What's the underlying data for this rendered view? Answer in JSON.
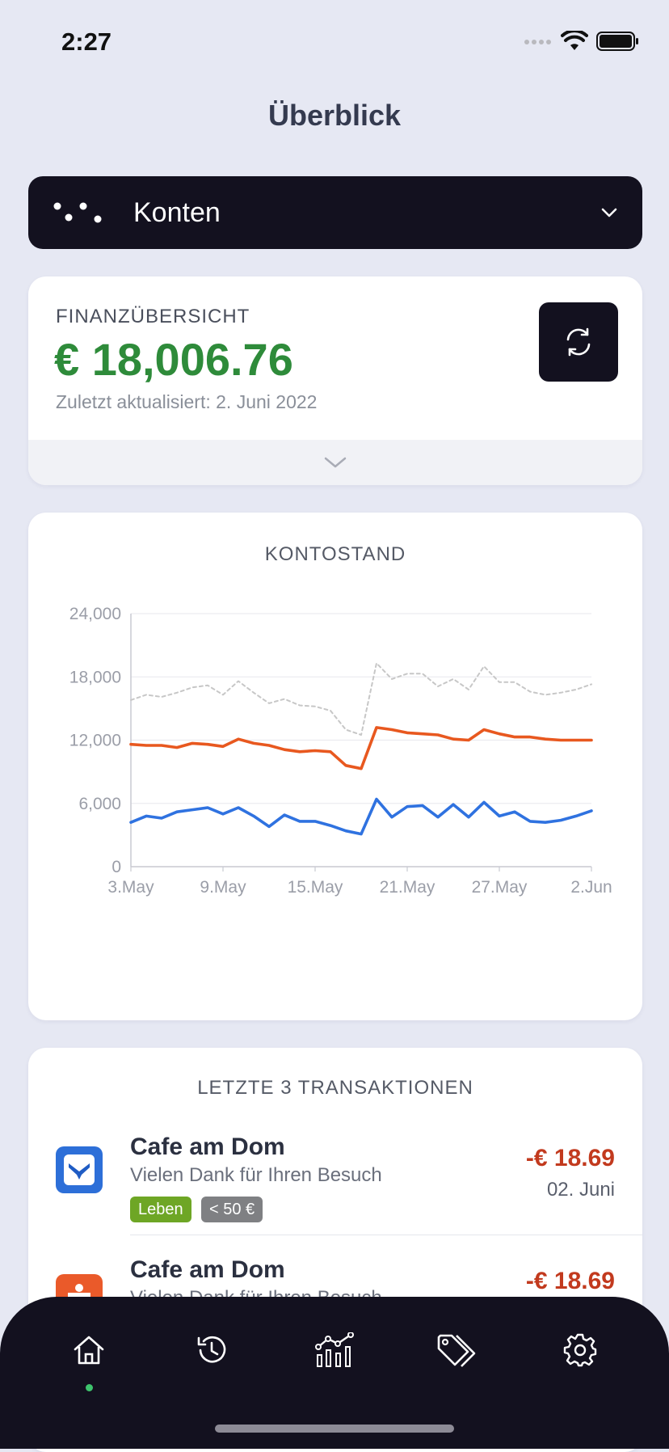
{
  "status_bar": {
    "time": "2:27"
  },
  "header": {
    "title": "Überblick"
  },
  "accounts": {
    "label": "Konten",
    "icon": "dots-icon",
    "chevron": "chevron-down-icon"
  },
  "finance": {
    "label": "FINANZÜBERSICHT",
    "amount": "€ 18,006.76",
    "updated": "Zuletzt aktualisiert: 2. Juni 2022",
    "amount_color": "#2e8b3a"
  },
  "chart": {
    "title": "KONTOSTAND"
  },
  "chart_data": {
    "type": "line",
    "title": "KONTOSTAND",
    "ylim": [
      0,
      24000
    ],
    "yticks": [
      "24,000",
      "18,000",
      "12,000",
      "6,000",
      "0"
    ],
    "xticks": [
      "3.May",
      "9.May",
      "15.May",
      "21.May",
      "27.May",
      "2.Jun"
    ],
    "x_start_day": 3,
    "grid": true,
    "series": [
      {
        "color": "#c7c7c7",
        "dashed": true,
        "values": [
          15800,
          16300,
          16100,
          16500,
          17000,
          17200,
          16300,
          17600,
          16500,
          15500,
          15900,
          15300,
          15200,
          14800,
          13000,
          12500,
          19300,
          17800,
          18300,
          18300,
          17100,
          17800,
          16800,
          19000,
          17500,
          17500,
          16600,
          16300,
          16500,
          16800,
          17300
        ]
      },
      {
        "color": "#e8581f",
        "dashed": false,
        "values": [
          11600,
          11500,
          11500,
          11300,
          11700,
          11600,
          11400,
          12100,
          11700,
          11500,
          11100,
          10900,
          11000,
          10900,
          9600,
          9300,
          13200,
          13000,
          12700,
          12600,
          12500,
          12100,
          12000,
          13000,
          12600,
          12300,
          12300,
          12100,
          12000,
          12000,
          12000
        ]
      },
      {
        "color": "#2f72e0",
        "dashed": false,
        "values": [
          4200,
          4800,
          4600,
          5200,
          5400,
          5600,
          5000,
          5600,
          4800,
          3800,
          4900,
          4300,
          4300,
          3900,
          3400,
          3100,
          6400,
          4700,
          5700,
          5800,
          4700,
          5900,
          4700,
          6100,
          4800,
          5200,
          4300,
          4200,
          4400,
          4800,
          5300
        ]
      }
    ]
  },
  "transactions": {
    "title": "LETZTE 3 TRANSAKTIONEN",
    "items": [
      {
        "name": "Cafe am Dom",
        "desc": "Vielen Dank für Ihren Besuch",
        "amount": "-€ 18.69",
        "date": "02. Juni",
        "icon": "bank-logo-icon",
        "icon_color": "#2d6fd8",
        "tags": [
          {
            "label": "Leben",
            "color": "#6ea625"
          },
          {
            "label": "< 50 €",
            "color": "#7f8083"
          }
        ]
      },
      {
        "name": "Cafe am Dom",
        "desc": "Vielen Dank für Ihren Besuch",
        "amount": "-€ 18.69",
        "icon": "savings-bank-icon",
        "icon_color": "#ea5a2a"
      }
    ]
  },
  "nav": {
    "items": [
      "home-icon",
      "history-icon",
      "analytics-icon",
      "tags-icon",
      "settings-icon"
    ],
    "active": "home-icon",
    "active_color": "#3ec46d"
  }
}
